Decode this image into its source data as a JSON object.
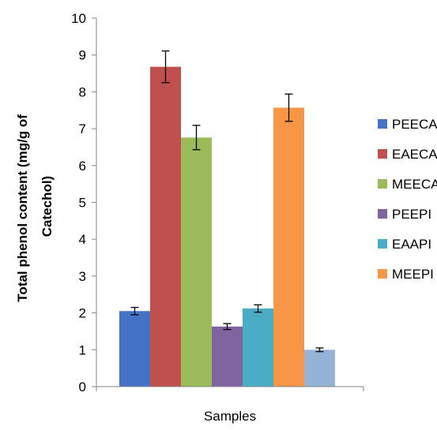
{
  "chart_data": {
    "type": "bar",
    "xlabel": "Samples",
    "ylabel_lines": [
      "Total phenol content (mg/g of",
      "Catechol)"
    ],
    "ylim": [
      0,
      10
    ],
    "y_ticks": [
      "0",
      "1",
      "2",
      "3",
      "4",
      "5",
      "6",
      "7",
      "8",
      "9",
      "10"
    ],
    "grid": false,
    "legend_position": "right",
    "series": [
      {
        "name": "PEECA",
        "value": 2.05,
        "error": 0.1,
        "color": "#4472C4"
      },
      {
        "name": "EAECA",
        "value": 8.68,
        "error": 0.43,
        "color": "#C0504D"
      },
      {
        "name": "MEECA",
        "value": 6.76,
        "error": 0.33,
        "color": "#9BBB59"
      },
      {
        "name": "PEEPI",
        "value": 1.63,
        "error": 0.08,
        "color": "#8064A2"
      },
      {
        "name": "EAAPI",
        "value": 2.12,
        "error": 0.1,
        "color": "#4BACC6"
      },
      {
        "name": "MEEPI",
        "value": 7.57,
        "error": 0.37,
        "color": "#F79646"
      },
      {
        "name": "",
        "value": 1.0,
        "error": 0.05,
        "color": "#95B3D7"
      }
    ]
  }
}
